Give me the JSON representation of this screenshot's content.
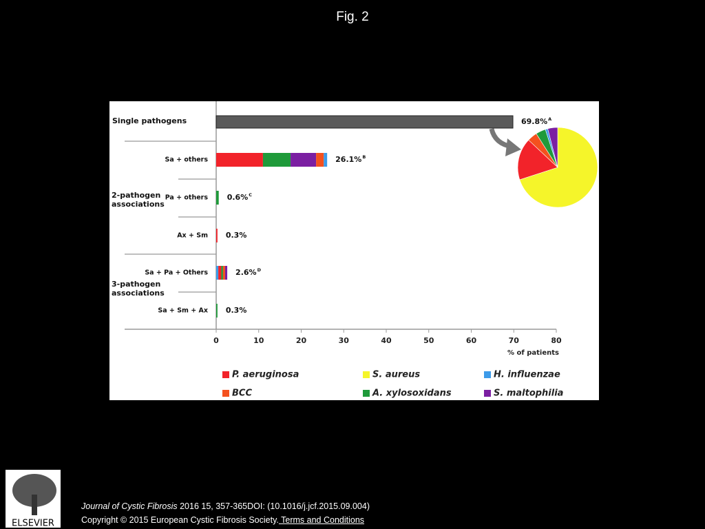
{
  "header": {
    "title": "Fig. 2"
  },
  "chart_data": {
    "type": "stacked-bar-horizontal",
    "xlim": [
      0,
      80
    ],
    "xticks": [
      0,
      10,
      20,
      30,
      40,
      50,
      60,
      70,
      80
    ],
    "xlabel": "% of patients",
    "rows": [
      {
        "label": "Single pathogens",
        "value_label": "69.8%",
        "note": "A",
        "segments": [
          {
            "color": "#5a5a5a",
            "value": 69.8
          }
        ]
      },
      {
        "label": "Sa + others",
        "value_label": "26.1%",
        "note": "B",
        "segments": [
          {
            "color": "#f2232a",
            "value": 11
          },
          {
            "color": "#1f9a3a",
            "value": 6.5
          },
          {
            "color": "#7b1fa2",
            "value": 6
          },
          {
            "color": "#f4511e",
            "value": 1.8
          },
          {
            "color": "#3d9be9",
            "value": 0.8
          }
        ]
      },
      {
        "label": "Pa + others",
        "value_label": "0.6%",
        "note": "C",
        "segments": [
          {
            "color": "#1f9a3a",
            "value": 0.6
          }
        ]
      },
      {
        "label": "Ax + Sm",
        "value_label": "0.3%",
        "note": null,
        "segments": [
          {
            "color": "#f2232a",
            "value": 0.3
          }
        ]
      },
      {
        "label": "Sa + Pa + Others",
        "value_label": "2.6%",
        "note": "D",
        "segments": [
          {
            "color": "#3d9be9",
            "value": 0.5
          },
          {
            "color": "#f2232a",
            "value": 0.7
          },
          {
            "color": "#1f9a3a",
            "value": 0.4
          },
          {
            "color": "#f4511e",
            "value": 0.5
          },
          {
            "color": "#7b1fa2",
            "value": 0.5
          }
        ]
      },
      {
        "label": "Sa + Sm + Ax",
        "value_label": "0.3%",
        "note": null,
        "segments": [
          {
            "color": "#1f9a3a",
            "value": 0.3
          }
        ]
      }
    ],
    "groups": [
      "2-pathogen associations",
      "3-pathogen associations"
    ],
    "legend": [
      {
        "name": "P. aeruginosa",
        "color": "#f2232a"
      },
      {
        "name": "S. aureus",
        "color": "#f5f52a"
      },
      {
        "name": "H. influenzae",
        "color": "#3d9be9"
      },
      {
        "name": "BCC",
        "color": "#f4511e"
      },
      {
        "name": "A. xylosoxidans",
        "color": "#1f9a3a"
      },
      {
        "name": "S. maltophilia",
        "color": "#7b1fa2"
      }
    ],
    "pie": {
      "values": [
        70,
        17,
        4,
        4,
        1,
        4
      ],
      "colors": [
        "#f5f52a",
        "#f2232a",
        "#f4511e",
        "#1f9a3a",
        "#3d9be9",
        "#7b1fa2"
      ]
    }
  },
  "footer": {
    "journal": "Journal of Cystic Fibrosis",
    "citation": " 2016 15, 357-365DOI: (10.1016/j.jcf.2015.09.004)",
    "copyright": "Copyright © 2015 European Cystic Fibrosis Society.",
    "link": " Terms and Conditions",
    "logo": "ELSEVIER"
  }
}
